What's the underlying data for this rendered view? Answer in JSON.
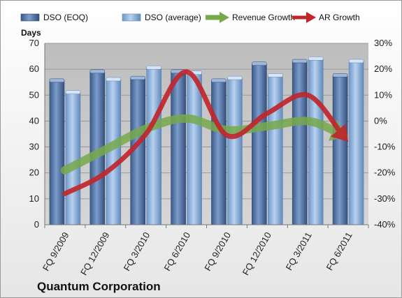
{
  "chart_data": {
    "type": "bar",
    "title": "Quantum Corporation",
    "ylabel": "Days",
    "categories": [
      "FQ 9/2009",
      "FQ 12/2009",
      "FQ 3/2010",
      "FQ 6/2010",
      "FQ 9/2010",
      "FQ 12/2010",
      "FQ 3/2011",
      "FQ 6/2011"
    ],
    "ylim": [
      0,
      70
    ],
    "yticks": [
      0,
      10,
      20,
      30,
      40,
      50,
      60,
      70
    ],
    "y2lim": [
      -0.4,
      0.3
    ],
    "y2ticks": [
      "-40%",
      "-30%",
      "-20%",
      "-10%",
      "0%",
      "10%",
      "20%",
      "30%"
    ],
    "grid": true,
    "legend_position": "top",
    "series": [
      {
        "name": "DSO (EOQ)",
        "type": "bar",
        "axis": "left",
        "color": "#5b7db1",
        "values": [
          55.5,
          59,
          56.5,
          59,
          55.5,
          62,
          63,
          57.5
        ]
      },
      {
        "name": "DSO (average)",
        "type": "bar",
        "axis": "left",
        "color": "#8fb4de",
        "values": [
          51,
          56,
          60.5,
          58.5,
          56.5,
          57.5,
          64,
          63
        ]
      },
      {
        "name": "Revenue Growth",
        "type": "line",
        "axis": "right",
        "color": "#77a94b",
        "values": [
          -0.19,
          -0.11,
          -0.03,
          0.01,
          -0.035,
          -0.02,
          0.0,
          -0.06
        ]
      },
      {
        "name": "AR Growth",
        "type": "line",
        "axis": "right",
        "color": "#c0262c",
        "values": [
          -0.28,
          -0.2,
          -0.05,
          0.19,
          -0.055,
          0.03,
          0.1,
          -0.08
        ]
      }
    ]
  },
  "colors": {
    "plot_background": "#c9c9c9",
    "background_gradient_top": "#ffffff",
    "background_gradient_bottom": "#e6e6e6"
  }
}
